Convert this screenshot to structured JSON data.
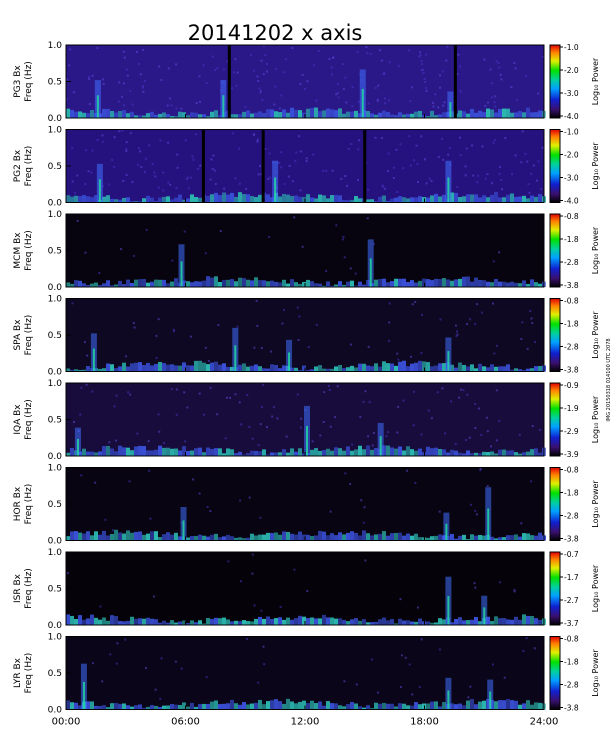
{
  "figure": {
    "title": "20141202  x axis",
    "x_tick_labels": [
      "00:00",
      "06:00",
      "12:00",
      "18:00",
      "24:00"
    ],
    "y_tick_labels": [
      "0.0",
      "0.5",
      "1.0"
    ],
    "freq_label": "Freq (Hz)",
    "colorbar_label": "Log₁₀ Power",
    "side_note": "IMG 20150318 014100 UTC 2078"
  },
  "chart_data": [
    {
      "type": "heatmap",
      "panel": "PG3",
      "ylabel": "PG3 Bx",
      "xlim": [
        0,
        24
      ],
      "ylim": [
        0,
        1.0
      ],
      "colorbar_range": [
        -4.0,
        -1.0
      ],
      "colorbar_ticks": [
        "-1.0",
        "-2.0",
        "-3.0",
        "-4.0"
      ],
      "background": "#2a1888",
      "gaps": [
        8.2,
        19.55
      ],
      "bursts": [
        1.6,
        7.9,
        14.9,
        19.3
      ],
      "noise_level": 0.45
    },
    {
      "type": "heatmap",
      "panel": "PG2",
      "ylabel": "PG2 Bx",
      "xlim": [
        0,
        24
      ],
      "ylim": [
        0,
        1.0
      ],
      "colorbar_range": [
        -4.0,
        -1.0
      ],
      "colorbar_ticks": [
        "-1.0",
        "-2.0",
        "-3.0",
        "-4.0"
      ],
      "background": "#26127e",
      "gaps": [
        6.9,
        9.9,
        15.0
      ],
      "bursts": [
        1.7,
        10.5,
        19.2
      ],
      "noise_level": 0.45
    },
    {
      "type": "heatmap",
      "panel": "MCM",
      "ylabel": "MCM Bx",
      "xlim": [
        0,
        24
      ],
      "ylim": [
        0,
        1.0
      ],
      "colorbar_range": [
        -3.8,
        -0.8
      ],
      "colorbar_ticks": [
        "-0.8",
        "-1.8",
        "-2.8",
        "-3.8"
      ],
      "background": "#070410",
      "gaps": [],
      "bursts": [
        5.8,
        15.3
      ],
      "noise_level": 0.06
    },
    {
      "type": "heatmap",
      "panel": "SPA",
      "ylabel": "SPA Bx",
      "xlim": [
        0,
        24
      ],
      "ylim": [
        0,
        1.0
      ],
      "colorbar_range": [
        -3.8,
        -0.8
      ],
      "colorbar_ticks": [
        "-0.8",
        "-1.8",
        "-2.8",
        "-3.8"
      ],
      "background": "#0e0822",
      "gaps": [],
      "bursts": [
        1.4,
        8.5,
        11.2,
        19.2
      ],
      "noise_level": 0.15
    },
    {
      "type": "heatmap",
      "panel": "IQA",
      "ylabel": "IQA Bx",
      "xlim": [
        0,
        24
      ],
      "ylim": [
        0,
        1.0
      ],
      "colorbar_range": [
        -3.9,
        -0.9
      ],
      "colorbar_ticks": [
        "-0.9",
        "-1.9",
        "-2.9",
        "-3.9"
      ],
      "background": "#170c3c",
      "gaps": [],
      "bursts": [
        0.6,
        12.1,
        15.8
      ],
      "noise_level": 0.25
    },
    {
      "type": "heatmap",
      "panel": "HOR",
      "ylabel": "HOR Bx",
      "xlim": [
        0,
        24
      ],
      "ylim": [
        0,
        1.0
      ],
      "colorbar_range": [
        -3.8,
        -0.8
      ],
      "colorbar_ticks": [
        "-0.8",
        "-1.8",
        "-2.8",
        "-3.8"
      ],
      "background": "#080412",
      "gaps": [],
      "bursts": [
        5.9,
        19.1,
        21.2
      ],
      "noise_level": 0.08
    },
    {
      "type": "heatmap",
      "panel": "ISR",
      "ylabel": "ISR Bx",
      "xlim": [
        0,
        24
      ],
      "ylim": [
        0,
        1.0
      ],
      "colorbar_range": [
        -3.7,
        -0.7
      ],
      "colorbar_ticks": [
        "-0.7",
        "-1.7",
        "-2.7",
        "-3.7"
      ],
      "background": "#050309",
      "gaps": [],
      "bursts": [
        19.2,
        21.0
      ],
      "noise_level": 0.05
    },
    {
      "type": "heatmap",
      "panel": "LYR",
      "ylabel": "LYR Bx",
      "xlim": [
        0,
        24
      ],
      "ylim": [
        0,
        1.0
      ],
      "colorbar_range": [
        -3.8,
        -0.8
      ],
      "colorbar_ticks": [
        "-0.8",
        "-1.8",
        "-2.8",
        "-3.8"
      ],
      "background": "#0a0518",
      "gaps": [],
      "bursts": [
        0.9,
        19.2,
        21.3
      ],
      "noise_level": 0.09
    }
  ]
}
